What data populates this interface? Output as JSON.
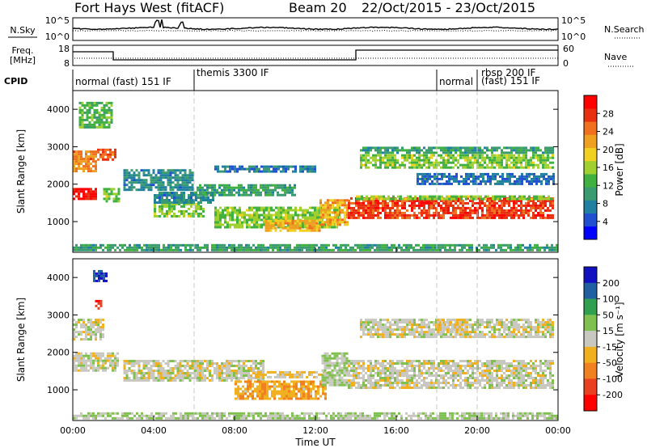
{
  "header": {
    "station": "Fort Hays West (fitACF)",
    "beam": "Beam 20",
    "date_range": "22/Oct/2015 - 23/Oct/2015"
  },
  "strips": {
    "nsky": {
      "label": "N.Sky",
      "ticks_left": [
        "10^5",
        "10^0"
      ],
      "ticks_right": [
        "10^5",
        "10^0"
      ],
      "right_label": "N.Search"
    },
    "freq": {
      "label_line1": "Freq.",
      "label_line2": "[MHz]",
      "ticks_left": [
        "18",
        "8"
      ],
      "ticks_right": [
        "60",
        "0"
      ],
      "right_label": "Nave"
    },
    "cpid": {
      "label": "CPID",
      "segments": [
        {
          "text": "normal (fast) 151 IF",
          "start_h": 0.0
        },
        {
          "text": "themis 3300 IF",
          "start_h": 6.0
        },
        {
          "text": "normal",
          "start_h": 18.0
        },
        {
          "text": "rbsp 200 IF",
          "start_h": 20.0
        },
        {
          "text": "(fast) 151 IF",
          "start_h": 20.0
        }
      ]
    }
  },
  "x_axis": {
    "label": "Time UT",
    "ticks": [
      "00:00",
      "04:00",
      "08:00",
      "12:00",
      "16:00",
      "20:00",
      "00:00"
    ]
  },
  "y_axis": {
    "label": "Slant Range [km]",
    "ticks": [
      "1000",
      "2000",
      "3000",
      "4000"
    ]
  },
  "colorbars": {
    "power": {
      "label": "Power [dB]",
      "ticks": [
        "4",
        "8",
        "12",
        "16",
        "20",
        "24",
        "28"
      ],
      "colors": [
        "#0000ff",
        "#2050d0",
        "#2080a0",
        "#3a9a70",
        "#40b040",
        "#a0d030",
        "#f0d020",
        "#f0a020",
        "#f07020",
        "#e83010",
        "#ff0000"
      ]
    },
    "velocity": {
      "label": "Velocity [m s⁻¹]",
      "ticks": [
        "200",
        "100",
        "50",
        "15",
        "-15",
        "-50",
        "-100",
        "-200"
      ],
      "colors": [
        "#1010c0",
        "#2060a0",
        "#30a050",
        "#80c050",
        "#c8c8c0",
        "#f0b020",
        "#f08020",
        "#e84020",
        "#ff0000"
      ]
    }
  },
  "chart_data": [
    {
      "type": "heatmap",
      "title": "Power",
      "x_range_hours": [
        0,
        24
      ],
      "ylim": [
        180,
        4500
      ],
      "cbar_range": [
        0,
        30
      ],
      "bands": [
        {
          "t0": 0.0,
          "t1": 1.2,
          "r0": 1550,
          "r1": 1900,
          "value": 28
        },
        {
          "t0": 0.0,
          "t1": 1.2,
          "r0": 2300,
          "r1": 2900,
          "value": 22
        },
        {
          "t0": 1.2,
          "t1": 2.1,
          "r0": 2600,
          "r1": 2950,
          "value": 24
        },
        {
          "t0": 1.5,
          "t1": 2.3,
          "r0": 1500,
          "r1": 1900,
          "value": 14
        },
        {
          "t0": 0.3,
          "t1": 2.0,
          "r0": 3500,
          "r1": 4200,
          "value": 12
        },
        {
          "t0": 2.5,
          "t1": 6.0,
          "r0": 1800,
          "r1": 2400,
          "value": 8
        },
        {
          "t0": 4.0,
          "t1": 6.5,
          "r0": 1100,
          "r1": 1500,
          "value": 14
        },
        {
          "t0": 4.0,
          "t1": 7.0,
          "r0": 1500,
          "r1": 1800,
          "value": 8
        },
        {
          "t0": 6.0,
          "t1": 11.0,
          "r0": 1700,
          "r1": 2000,
          "value": 10
        },
        {
          "t0": 7.0,
          "t1": 13.2,
          "r0": 800,
          "r1": 1400,
          "value": 14
        },
        {
          "t0": 9.5,
          "t1": 12.3,
          "r0": 700,
          "r1": 1050,
          "value": 20
        },
        {
          "t0": 7.0,
          "t1": 12.0,
          "r0": 2300,
          "r1": 2500,
          "value": 7
        },
        {
          "t0": 12.2,
          "t1": 13.6,
          "r0": 900,
          "r1": 1600,
          "value": 20
        },
        {
          "t0": 13.6,
          "t1": 23.8,
          "r0": 1050,
          "r1": 1650,
          "value": 26
        },
        {
          "t0": 14.0,
          "t1": 23.8,
          "r0": 1600,
          "r1": 1700,
          "value": 14
        },
        {
          "t0": 14.2,
          "t1": 23.8,
          "r0": 2400,
          "r1": 2800,
          "value": 14
        },
        {
          "t0": 14.2,
          "t1": 23.8,
          "r0": 2800,
          "r1": 3000,
          "value": 10
        },
        {
          "t0": 17.0,
          "t1": 23.8,
          "r0": 2000,
          "r1": 2300,
          "value": 6
        },
        {
          "t0": 0.0,
          "t1": 24.0,
          "r0": 180,
          "r1": 400,
          "value": 10
        }
      ]
    },
    {
      "type": "heatmap",
      "title": "Velocity",
      "x_range_hours": [
        0,
        24
      ],
      "ylim": [
        180,
        4500
      ],
      "cbar_range": [
        -250,
        250
      ],
      "bands": [
        {
          "t0": 0.0,
          "t1": 2.3,
          "r0": 1500,
          "r1": 2000,
          "value": 0
        },
        {
          "t0": 0.0,
          "t1": 1.6,
          "r0": 2300,
          "r1": 2900,
          "value": 0
        },
        {
          "t0": 1.0,
          "t1": 1.7,
          "r0": 3900,
          "r1": 4200,
          "value": 200
        },
        {
          "t0": 1.1,
          "t1": 1.4,
          "r0": 3150,
          "r1": 3400,
          "value": -200
        },
        {
          "t0": 2.5,
          "t1": 6.5,
          "r0": 1200,
          "r1": 1800,
          "value": 0
        },
        {
          "t0": 6.0,
          "t1": 9.5,
          "r0": 1200,
          "r1": 1800,
          "value": 0
        },
        {
          "t0": 8.0,
          "t1": 12.5,
          "r0": 700,
          "r1": 1250,
          "value": -70
        },
        {
          "t0": 9.0,
          "t1": 12.8,
          "r0": 1300,
          "r1": 1500,
          "value": -30
        },
        {
          "t0": 12.3,
          "t1": 13.6,
          "r0": 1100,
          "r1": 2000,
          "value": 30
        },
        {
          "t0": 13.6,
          "t1": 23.8,
          "r0": 1050,
          "r1": 1800,
          "value": 0
        },
        {
          "t0": 14.2,
          "t1": 23.8,
          "r0": 2400,
          "r1": 2900,
          "value": 0
        },
        {
          "t0": 18.0,
          "t1": 19.5,
          "r0": 2500,
          "r1": 2900,
          "value": -30
        },
        {
          "t0": 0.0,
          "t1": 24.0,
          "r0": 180,
          "r1": 400,
          "value": 30
        }
      ]
    }
  ]
}
